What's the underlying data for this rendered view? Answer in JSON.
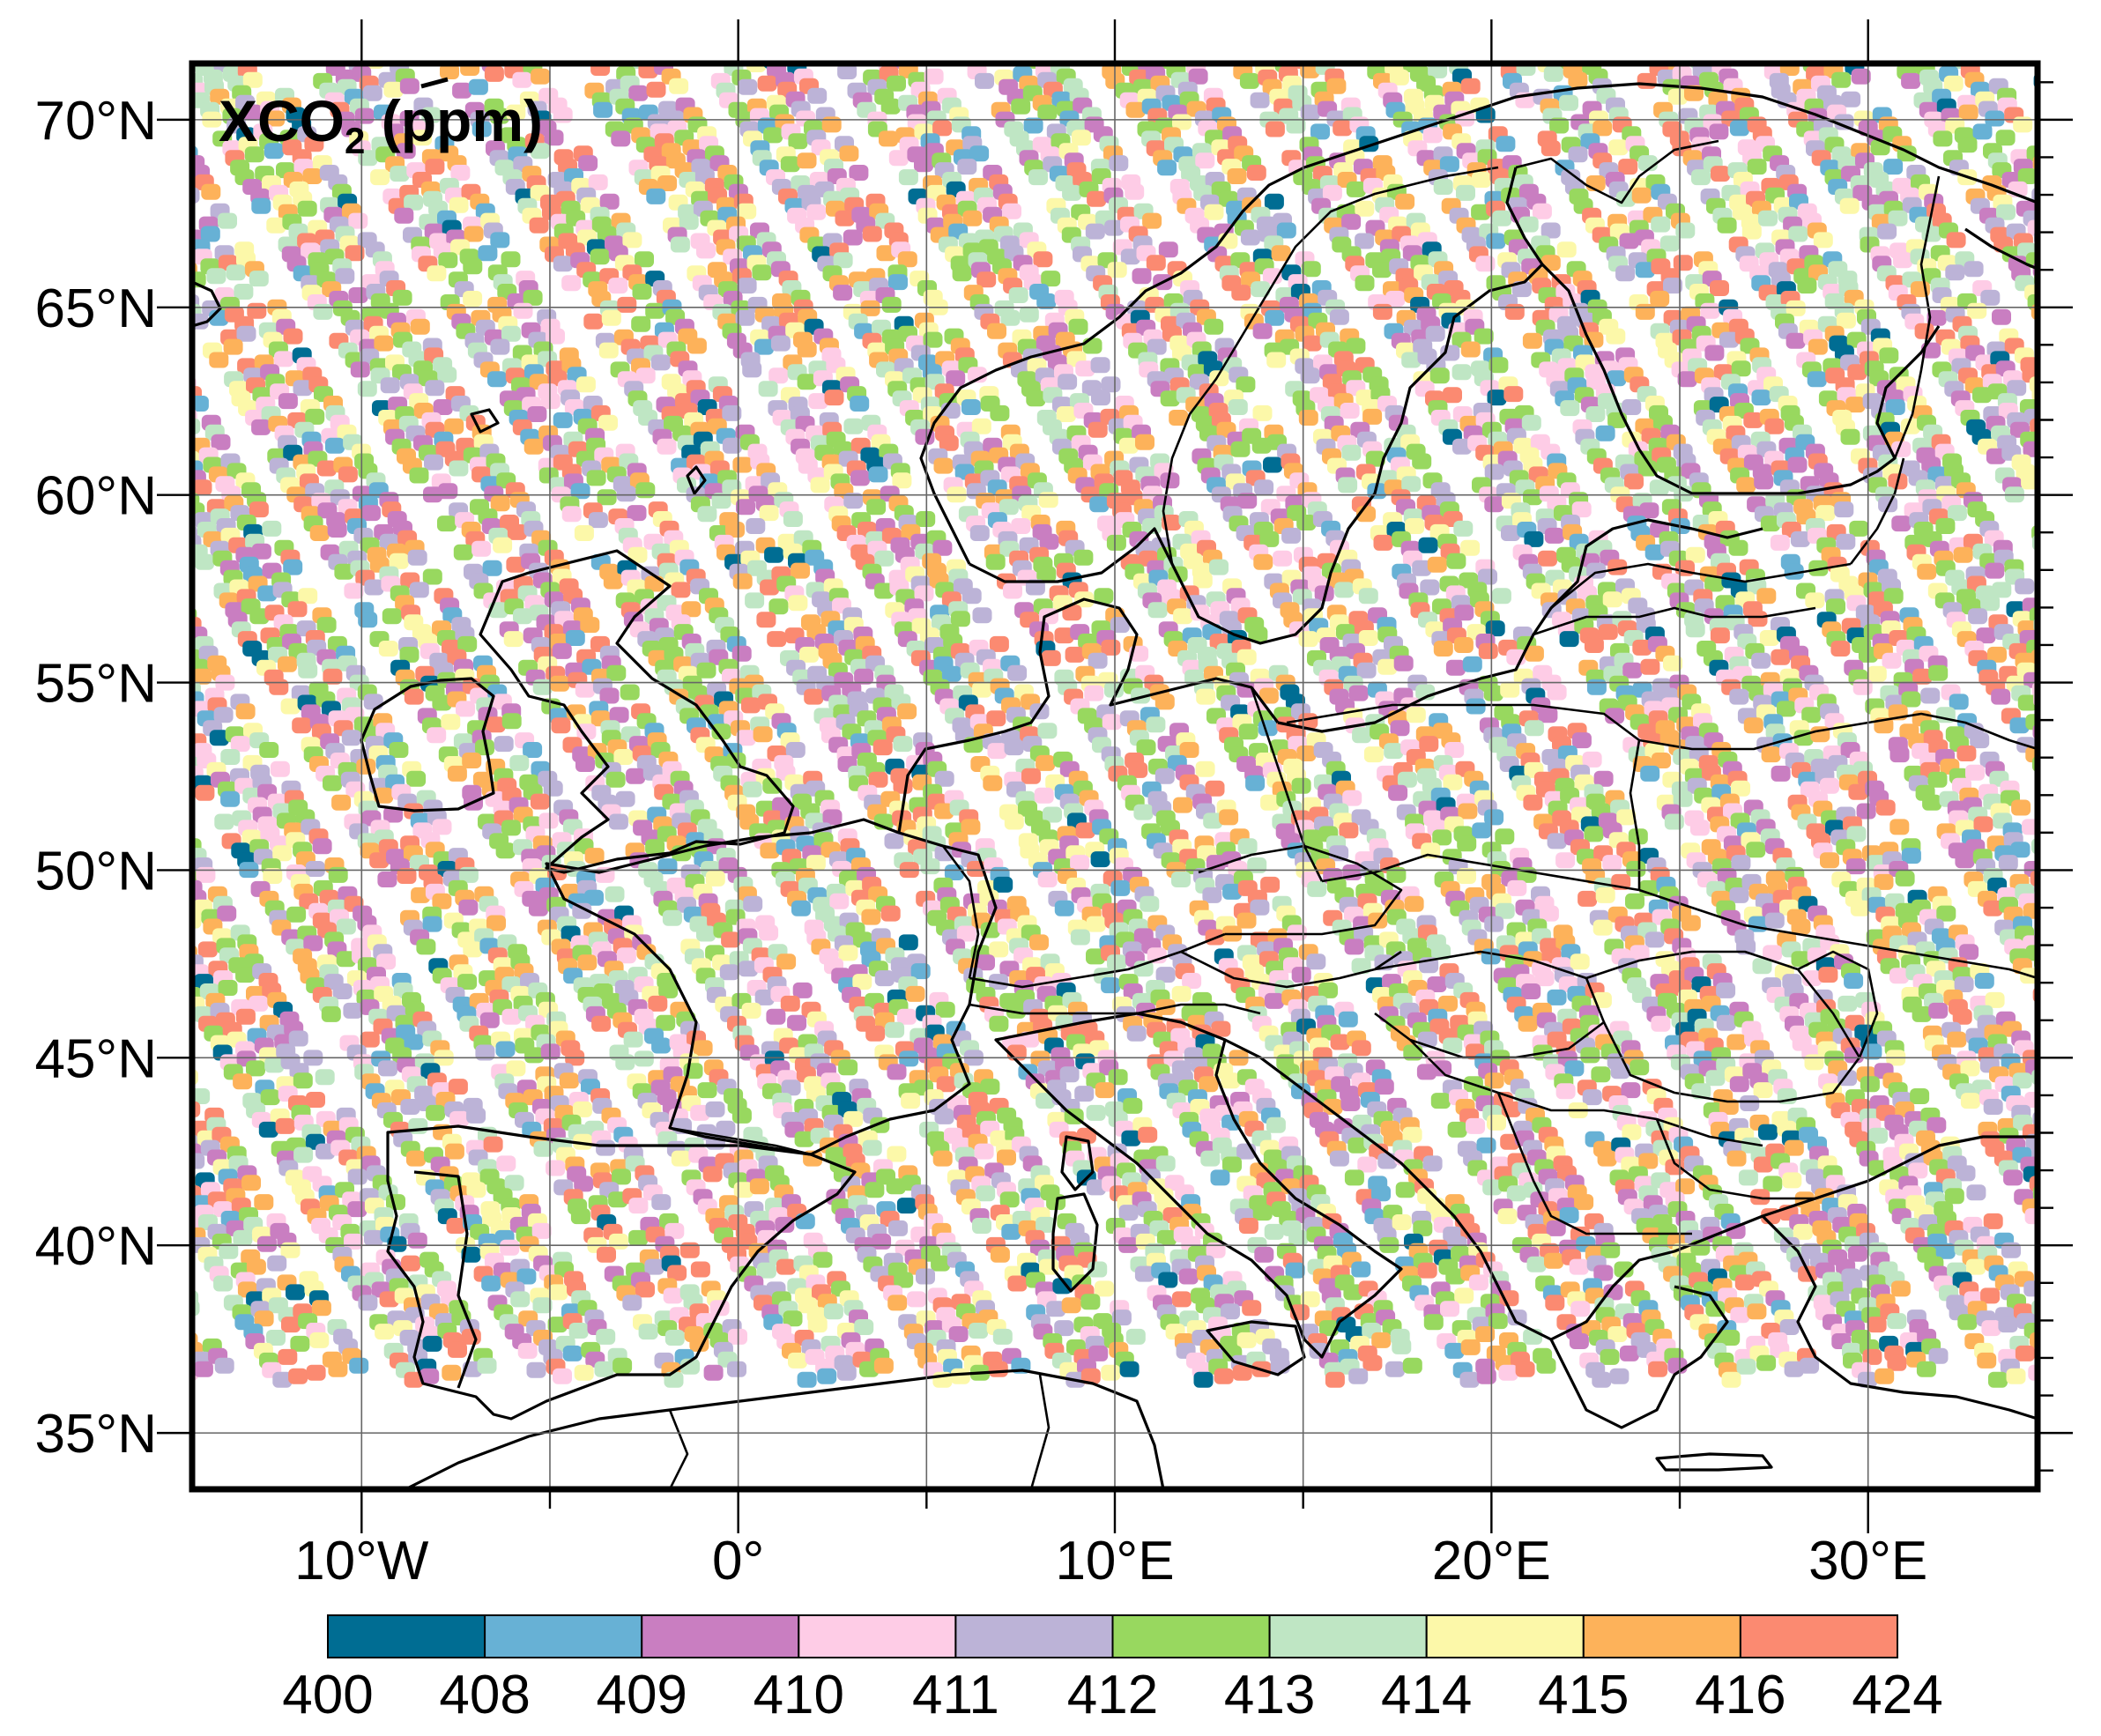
{
  "map": {
    "title_main": "XCO",
    "title_sub": "2",
    "title_unit": " (ppm)",
    "lon_range": [
      -14.5,
      34.5
    ],
    "lat_range": [
      33.5,
      71.5
    ],
    "lon_ticks": [
      {
        "value": -10,
        "label": "10°W"
      },
      {
        "value": 0,
        "label": "0°"
      },
      {
        "value": 10,
        "label": "10°E"
      },
      {
        "value": 20,
        "label": "20°E"
      },
      {
        "value": 30,
        "label": "30°E"
      }
    ],
    "lat_ticks": [
      {
        "value": 70,
        "label": "70°N"
      },
      {
        "value": 65,
        "label": "65°N"
      },
      {
        "value": 60,
        "label": "60°N"
      },
      {
        "value": 55,
        "label": "55°N"
      },
      {
        "value": 50,
        "label": "50°N"
      },
      {
        "value": 45,
        "label": "45°N"
      },
      {
        "value": 40,
        "label": "40°N"
      },
      {
        "value": 35,
        "label": "35°N"
      }
    ],
    "grid": true,
    "coastlines": true,
    "colors": {
      "frame": "#000000",
      "grid": "#666666",
      "coast": "#000000"
    }
  },
  "colorbar": {
    "boundaries": [
      "400",
      "408",
      "409",
      "410",
      "411",
      "412",
      "413",
      "414",
      "415",
      "416",
      "424"
    ],
    "colors": [
      "#006d93",
      "#67b1d5",
      "#c97ec1",
      "#fecce6",
      "#bcb3d7",
      "#98d85f",
      "#bfe6c4",
      "#fcf8a9",
      "#fdb25a",
      "#fb8a71"
    ]
  }
}
